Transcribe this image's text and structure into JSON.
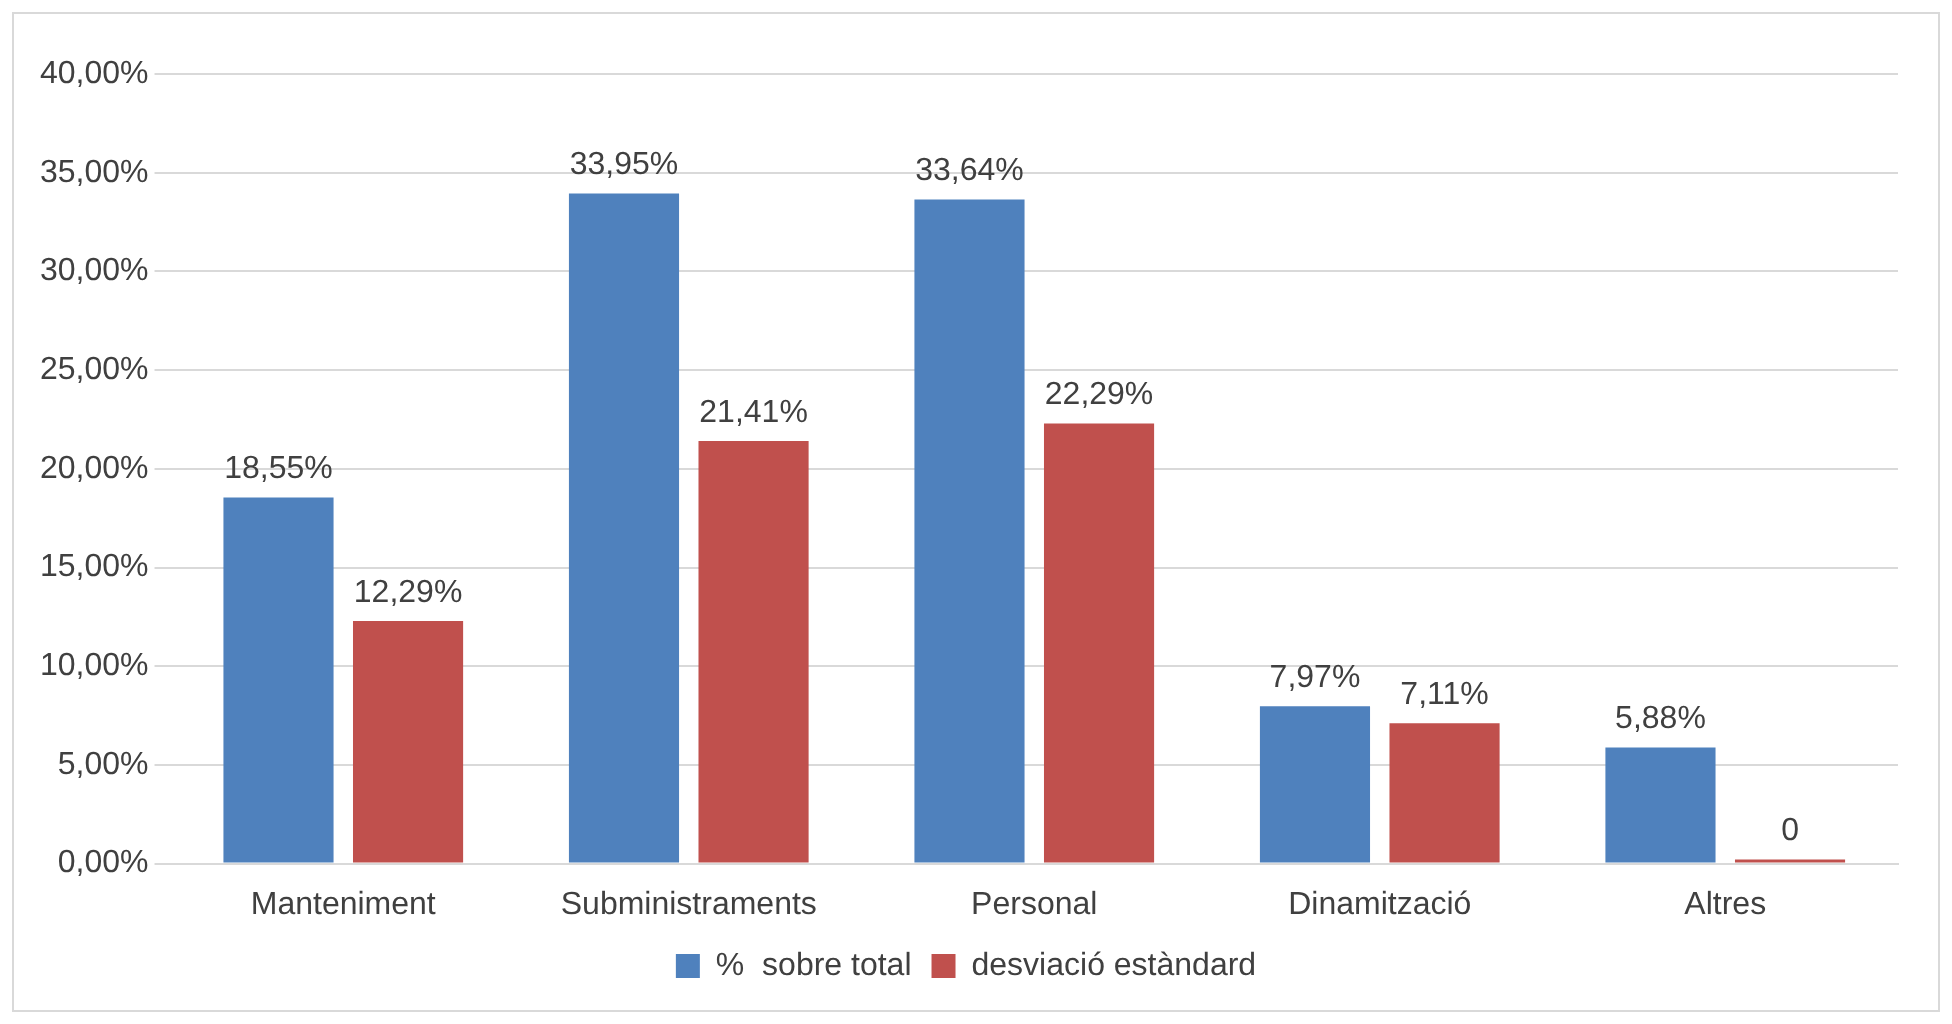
{
  "chart_data": {
    "type": "bar",
    "categories": [
      "Manteniment",
      "Subministraments",
      "Personal",
      "Dinamització",
      "Altres"
    ],
    "series": [
      {
        "name": "%  sobre total",
        "color": "#4f81bd",
        "values": [
          18.55,
          33.95,
          33.64,
          7.97,
          5.88
        ],
        "value_labels": [
          "18,55%",
          "33,95%",
          "33,64%",
          "7,97%",
          "5,88%"
        ]
      },
      {
        "name": "desviació estàndard",
        "color": "#c0504d",
        "values": [
          12.29,
          21.41,
          22.29,
          7.11,
          0
        ],
        "value_labels": [
          "12,29%",
          "21,41%",
          "22,29%",
          "7,11%",
          "0"
        ]
      }
    ],
    "ylim": [
      0,
      40
    ],
    "yticks": [
      {
        "value": 0,
        "label": "0,00%"
      },
      {
        "value": 5,
        "label": "5,00%"
      },
      {
        "value": 10,
        "label": "10,00%"
      },
      {
        "value": 15,
        "label": "15,00%"
      },
      {
        "value": 20,
        "label": "20,00%"
      },
      {
        "value": 25,
        "label": "25,00%"
      },
      {
        "value": 30,
        "label": "30,00%"
      },
      {
        "value": 35,
        "label": "35,00%"
      },
      {
        "value": 40,
        "label": "40,00%"
      }
    ],
    "grid": "y",
    "legend": "bottom"
  }
}
